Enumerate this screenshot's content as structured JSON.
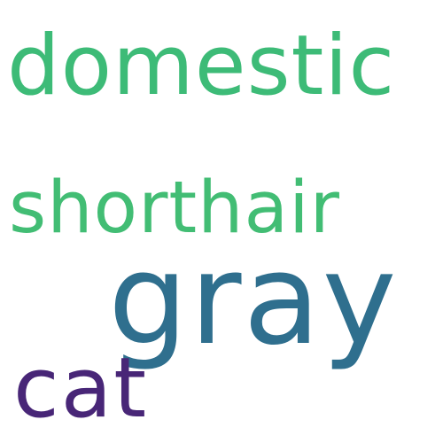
{
  "words": [
    {
      "text": "domestic",
      "color": "#3dbb77"
    },
    {
      "text": "shorthair",
      "color": "#42bd74"
    },
    {
      "text": "gray",
      "color": "#2f6f8e"
    },
    {
      "text": "cat",
      "color": "#482677"
    }
  ],
  "background": "#ffffff"
}
